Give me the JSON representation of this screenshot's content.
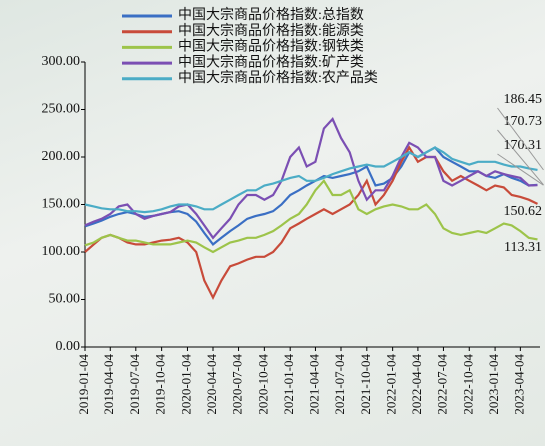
{
  "chart_data": {
    "type": "line",
    "x": [
      "2019-01-04",
      "2019-02-04",
      "2019-03-04",
      "2019-04-04",
      "2019-05-04",
      "2019-06-04",
      "2019-07-04",
      "2019-08-04",
      "2019-09-04",
      "2019-10-04",
      "2019-11-04",
      "2019-12-04",
      "2020-01-04",
      "2020-02-04",
      "2020-03-04",
      "2020-04-04",
      "2020-05-04",
      "2020-06-04",
      "2020-07-04",
      "2020-08-04",
      "2020-09-04",
      "2020-10-04",
      "2020-11-04",
      "2020-12-04",
      "2021-01-04",
      "2021-02-04",
      "2021-03-04",
      "2021-04-04",
      "2021-05-04",
      "2021-06-04",
      "2021-07-04",
      "2021-08-04",
      "2021-09-04",
      "2021-10-04",
      "2021-11-04",
      "2021-12-04",
      "2022-01-04",
      "2022-02-04",
      "2022-03-04",
      "2022-04-04",
      "2022-05-04",
      "2022-06-04",
      "2022-07-04",
      "2022-08-04",
      "2022-09-04",
      "2022-10-04",
      "2022-11-04",
      "2022-12-04",
      "2023-01-04",
      "2023-02-04",
      "2023-03-04",
      "2023-04-04",
      "2023-05-04",
      "2023-06-04"
    ],
    "series": [
      {
        "name": "中国大宗商品价格指数:总指数",
        "color": "#3a6fc4",
        "values": [
          127,
          130,
          133,
          137,
          140,
          142,
          140,
          137,
          138,
          140,
          142,
          143,
          140,
          132,
          120,
          108,
          115,
          122,
          128,
          135,
          138,
          140,
          143,
          150,
          160,
          165,
          170,
          175,
          180,
          178,
          180,
          182,
          185,
          190,
          170,
          172,
          178,
          190,
          205,
          200,
          205,
          210,
          200,
          195,
          190,
          185,
          185,
          180,
          178,
          182,
          178,
          175,
          170,
          170.73
        ]
      },
      {
        "name": "中国大宗商品价格指数:能源类",
        "color": "#c84b3a",
        "values": [
          100,
          108,
          115,
          118,
          115,
          110,
          108,
          108,
          110,
          112,
          113,
          115,
          110,
          100,
          70,
          52,
          70,
          85,
          88,
          92,
          95,
          95,
          100,
          110,
          125,
          130,
          135,
          140,
          145,
          140,
          145,
          150,
          160,
          175,
          150,
          160,
          175,
          195,
          210,
          195,
          200,
          200,
          185,
          175,
          180,
          175,
          170,
          165,
          170,
          168,
          160,
          158,
          155,
          150.62
        ]
      },
      {
        "name": "中国大宗商品价格指数:钢铁类",
        "color": "#9dc44a",
        "values": [
          107,
          110,
          115,
          118,
          115,
          112,
          112,
          110,
          108,
          108,
          108,
          110,
          112,
          110,
          105,
          100,
          105,
          110,
          112,
          115,
          115,
          118,
          122,
          128,
          135,
          140,
          150,
          165,
          175,
          160,
          160,
          165,
          145,
          140,
          145,
          148,
          150,
          148,
          145,
          145,
          150,
          140,
          125,
          120,
          118,
          120,
          122,
          120,
          125,
          130,
          128,
          122,
          115,
          113.31
        ]
      },
      {
        "name": "中国大宗商品价格指数:矿产类",
        "color": "#7b4fb3",
        "values": [
          128,
          132,
          135,
          140,
          148,
          150,
          140,
          135,
          138,
          140,
          142,
          148,
          150,
          140,
          128,
          115,
          125,
          135,
          150,
          160,
          160,
          155,
          160,
          175,
          200,
          210,
          190,
          195,
          230,
          240,
          220,
          205,
          175,
          155,
          165,
          165,
          180,
          200,
          215,
          210,
          200,
          200,
          175,
          170,
          175,
          180,
          185,
          180,
          185,
          182,
          180,
          178,
          170,
          170.31
        ]
      },
      {
        "name": "中国大宗商品价格指数:农产品类",
        "color": "#4bacc6",
        "values": [
          150,
          148,
          146,
          145,
          145,
          143,
          143,
          142,
          143,
          145,
          148,
          150,
          150,
          148,
          145,
          145,
          150,
          155,
          160,
          165,
          165,
          170,
          172,
          175,
          178,
          180,
          175,
          175,
          178,
          182,
          185,
          188,
          190,
          192,
          190,
          190,
          195,
          200,
          205,
          200,
          205,
          210,
          205,
          198,
          195,
          192,
          195,
          195,
          195,
          192,
          190,
          190,
          188,
          186.45
        ]
      }
    ],
    "xlim": [
      "2019-01-04",
      "2023-06-13"
    ],
    "xticks": [
      "2019-01-04",
      "2019-04-04",
      "2019-07-04",
      "2019-10-04",
      "2020-01-04",
      "2020-04-04",
      "2020-07-04",
      "2020-10-04",
      "2021-01-04",
      "2021-04-04",
      "2021-07-04",
      "2021-10-04",
      "2022-01-04",
      "2022-04-04",
      "2022-07-04",
      "2022-10-04",
      "2023-01-04",
      "2023-04-04"
    ],
    "ylim": [
      0,
      300
    ],
    "yticks": [
      {
        "value": 0,
        "label": "0.00"
      },
      {
        "value": 50,
        "label": "50.00"
      },
      {
        "value": 100,
        "label": "100.00"
      },
      {
        "value": 150,
        "label": "150.00"
      },
      {
        "value": 200,
        "label": "200.00"
      },
      {
        "value": 250,
        "label": "250.00"
      },
      {
        "value": 300,
        "label": "300.00"
      }
    ]
  }
}
